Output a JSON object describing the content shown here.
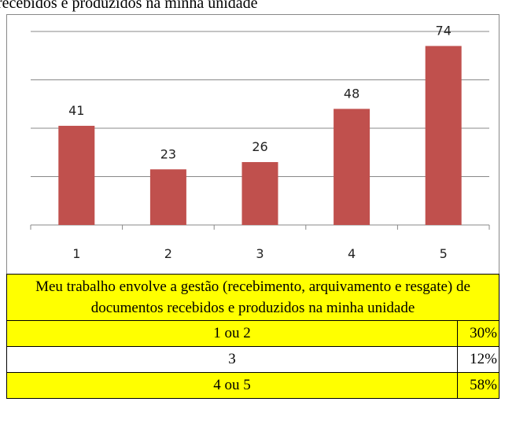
{
  "caption": "recebidos e produzidos na minha unidade",
  "chart_data": {
    "type": "bar",
    "categories": [
      "1",
      "2",
      "3",
      "4",
      "5"
    ],
    "values": [
      41,
      23,
      26,
      48,
      74
    ],
    "color": "#c0504d",
    "ylim": [
      0,
      80
    ],
    "yticks": [
      0,
      20,
      40,
      60,
      80
    ],
    "grid": true,
    "data_labels": true
  },
  "table": {
    "header": "Meu trabalho envolve a gestão (recebimento, arquivamento e resgate) de documentos recebidos e produzidos na minha unidade",
    "rows": [
      [
        "1 ou 2",
        "30%"
      ],
      [
        "3",
        "12%"
      ],
      [
        "4 ou 5",
        "58%"
      ]
    ]
  }
}
